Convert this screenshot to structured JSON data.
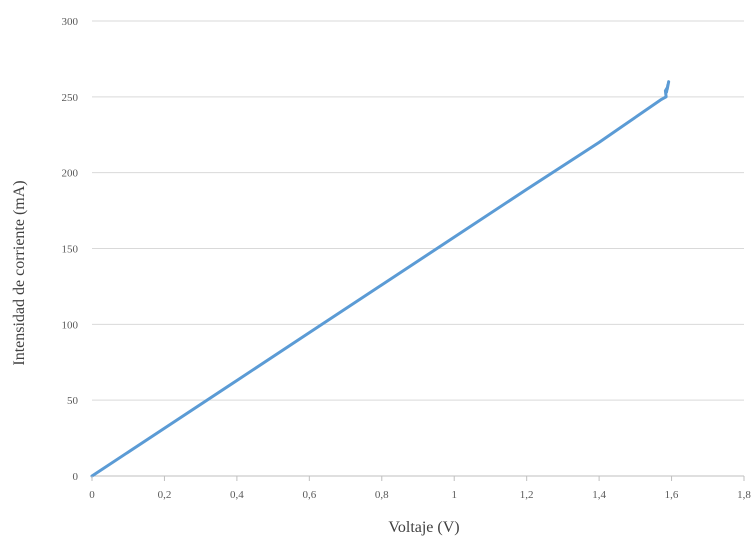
{
  "chart_data": {
    "type": "line",
    "title": "",
    "xlabel": "Voltaje (V)",
    "ylabel": "Intensidad de corriente (mA)",
    "xlim": [
      0,
      1.8
    ],
    "ylim": [
      0,
      300
    ],
    "x_ticks": [
      "0",
      "0,2",
      "0,4",
      "0,6",
      "0,8",
      "1",
      "1,2",
      "1,4",
      "1,6",
      "1,8"
    ],
    "y_ticks": [
      "0",
      "50",
      "100",
      "150",
      "200",
      "250",
      "300"
    ],
    "x_tick_values": [
      0,
      0.2,
      0.4,
      0.6,
      0.8,
      1.0,
      1.2,
      1.4,
      1.6,
      1.8
    ],
    "y_tick_values": [
      0,
      50,
      100,
      150,
      200,
      250,
      300
    ],
    "grid": "horizontal",
    "legend": "none",
    "line_color": "#5B9BD5",
    "grid_color": "#D9D9D9",
    "series": [
      {
        "x": [
          0,
          0.2,
          0.4,
          0.6,
          0.8,
          1.0,
          1.2,
          1.4,
          1.57,
          1.585,
          1.583,
          1.588,
          1.586,
          1.59,
          1.588,
          1.592
        ],
        "y": [
          0,
          31.5,
          63,
          94.5,
          126,
          157.5,
          189,
          220,
          248,
          250,
          254,
          256,
          253,
          258,
          255,
          260
        ]
      }
    ]
  }
}
